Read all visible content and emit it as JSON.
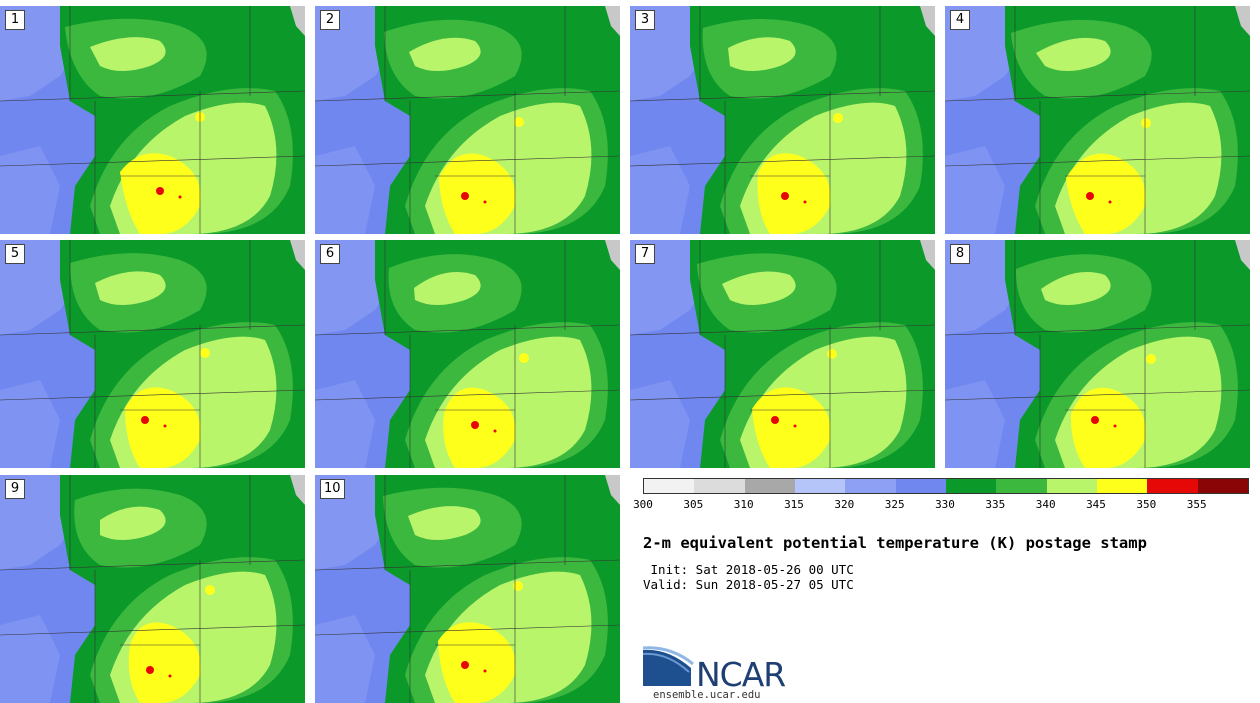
{
  "panels": [
    {
      "label": "1"
    },
    {
      "label": "2"
    },
    {
      "label": "3"
    },
    {
      "label": "4"
    },
    {
      "label": "5"
    },
    {
      "label": "6"
    },
    {
      "label": "7"
    },
    {
      "label": "8"
    },
    {
      "label": "9"
    },
    {
      "label": "10"
    }
  ],
  "colorbar": {
    "ticks": [
      "300",
      "305",
      "310",
      "315",
      "320",
      "325",
      "330",
      "335",
      "340",
      "345",
      "350",
      "355"
    ],
    "colors": [
      "#f2f2f2",
      "#dcdcdc",
      "#a8a8a8",
      "#b5c5f9",
      "#8da0f4",
      "#7087f0",
      "#0b9a2a",
      "#3cb83f",
      "#b9f56b",
      "#ffff1c",
      "#e60707",
      "#8a0606"
    ]
  },
  "title": "2-m equivalent potential temperature (K) postage stamp",
  "init_line": " Init: Sat 2018-05-26 00 UTC",
  "valid_line": "Valid: Sun 2018-05-27 05 UTC",
  "logo": {
    "text": "NCAR",
    "site": "ensemble.ucar.edu"
  }
}
